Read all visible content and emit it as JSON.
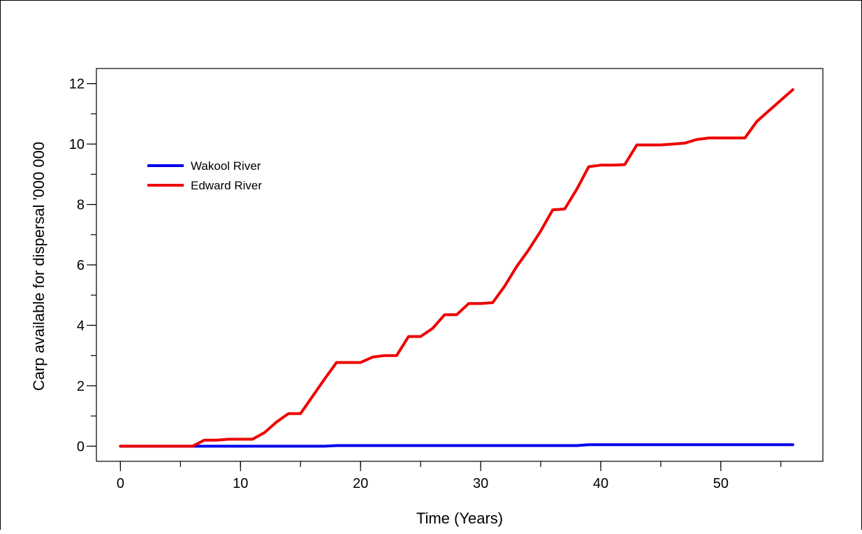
{
  "chart_data": {
    "type": "line",
    "title": "",
    "xlabel": "Time (Years)",
    "ylabel": "Carp available for dispersal '000 000",
    "xlim": [
      -2,
      58.5
    ],
    "ylim": [
      -0.5,
      12.5
    ],
    "xticks": [
      0,
      10,
      20,
      30,
      40,
      50
    ],
    "xticks_minor": [
      0,
      5,
      10,
      15,
      20,
      25,
      30,
      35,
      40,
      45,
      50,
      55
    ],
    "yticks": [
      0,
      2,
      4,
      6,
      8,
      10,
      12
    ],
    "yticks_minor": [
      0,
      1,
      2,
      3,
      4,
      5,
      6,
      7,
      8,
      9,
      10,
      11,
      12
    ],
    "grid": false,
    "legend_position": "top-left",
    "series": [
      {
        "name": "Wakool River",
        "color": "#0000ee",
        "x": [
          0,
          17,
          18,
          38,
          39,
          56
        ],
        "y": [
          0,
          0,
          0.02,
          0.02,
          0.05,
          0.05
        ]
      },
      {
        "name": "Edward River",
        "color": "#ee0000",
        "x": [
          0,
          1,
          2,
          3,
          4,
          5,
          6,
          7,
          8,
          9,
          10,
          11,
          12,
          13,
          14,
          15,
          16,
          17,
          18,
          19,
          20,
          21,
          22,
          23,
          24,
          25,
          26,
          27,
          28,
          29,
          30,
          31,
          32,
          33,
          34,
          35,
          36,
          37,
          38,
          39,
          40,
          41,
          42,
          43,
          44,
          45,
          46,
          47,
          48,
          49,
          50,
          51,
          52,
          53,
          54,
          55,
          56
        ],
        "y": [
          0,
          0,
          0,
          0,
          0,
          0,
          0,
          0.2,
          0.2,
          0.23,
          0.23,
          0.23,
          0.45,
          0.8,
          1.08,
          1.08,
          1.65,
          2.22,
          2.77,
          2.77,
          2.77,
          2.95,
          3.0,
          3.0,
          3.63,
          3.63,
          3.9,
          4.35,
          4.35,
          4.72,
          4.72,
          4.75,
          5.3,
          5.95,
          6.5,
          7.12,
          7.82,
          7.85,
          8.5,
          9.25,
          9.3,
          9.3,
          9.32,
          9.97,
          9.97,
          9.97,
          10.0,
          10.03,
          10.15,
          10.2,
          10.2,
          10.2,
          10.2,
          10.75,
          11.1,
          11.45,
          11.8
        ]
      }
    ]
  }
}
